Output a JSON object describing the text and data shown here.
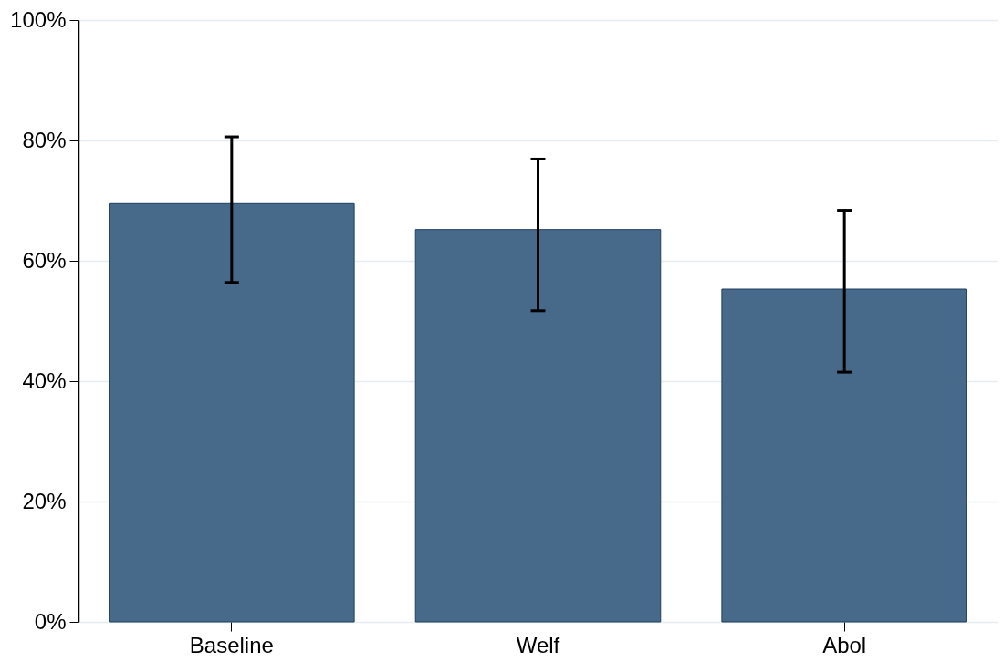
{
  "chart_data": {
    "type": "bar",
    "categories": [
      "Baseline",
      "Welf",
      "Abol"
    ],
    "values": [
      69.5,
      65.2,
      55.3
    ],
    "errors": [
      [
        56.4,
        80.6
      ],
      [
        51.7,
        76.9
      ],
      [
        41.5,
        68.4
      ]
    ],
    "color": "#476a8a",
    "ylim": [
      0,
      100
    ],
    "yticks": [
      {
        "value": 0,
        "label": "0%"
      },
      {
        "value": 20,
        "label": "20%"
      },
      {
        "value": 40,
        "label": "40%"
      },
      {
        "value": 60,
        "label": "60%"
      },
      {
        "value": 80,
        "label": "80%"
      },
      {
        "value": 100,
        "label": "100%"
      }
    ],
    "grid": "y"
  }
}
